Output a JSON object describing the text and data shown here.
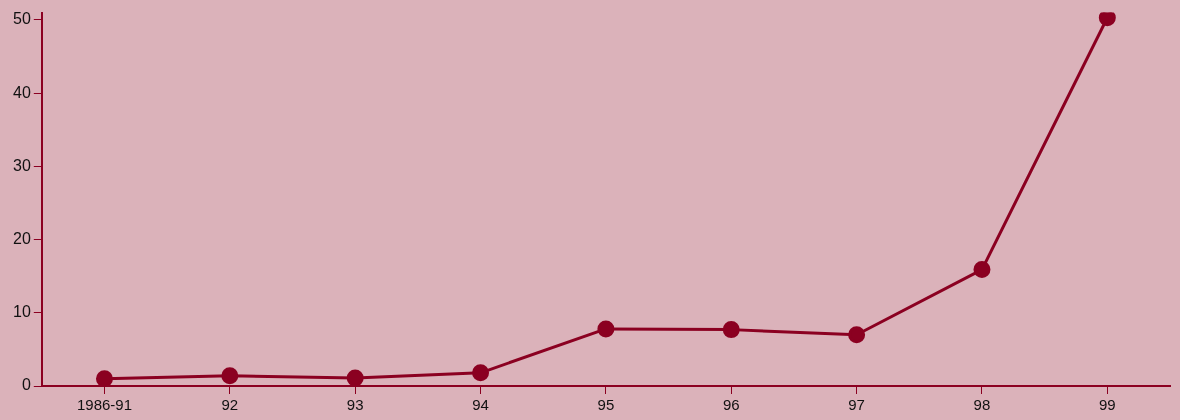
{
  "chart_data": {
    "type": "line",
    "categories": [
      "1986-91",
      "92",
      "93",
      "94",
      "95",
      "96",
      "97",
      "98",
      "99"
    ],
    "series": [
      {
        "color": "#8b0021",
        "values": [
          1.0,
          1.4,
          1.1,
          1.8,
          7.8,
          7.7,
          7.0,
          15.9,
          50.3
        ]
      }
    ],
    "ylim": [
      0,
      51
    ],
    "yticks": [
      0,
      10,
      20,
      30,
      40,
      50
    ],
    "marker": "circle",
    "line_style": "solid",
    "legend": false
  }
}
